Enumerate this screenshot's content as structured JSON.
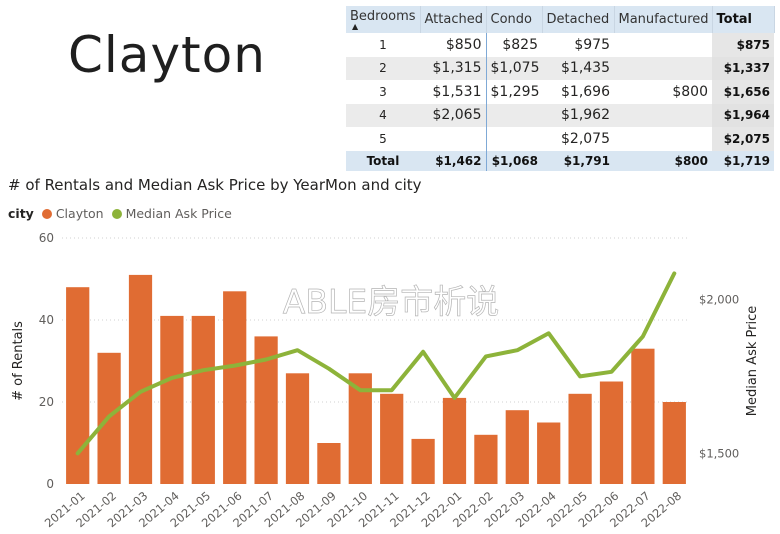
{
  "page": {
    "title": "Clayton"
  },
  "matrix": {
    "headers": [
      "Bedrooms",
      "Attached",
      "Condo",
      "Detached",
      "Manufactured",
      "Total"
    ],
    "rows": [
      [
        "1",
        "$850",
        "$825",
        "$975",
        "",
        "$875"
      ],
      [
        "2",
        "$1,315",
        "$1,075",
        "$1,435",
        "",
        "$1,337"
      ],
      [
        "3",
        "$1,531",
        "$1,295",
        "$1,696",
        "$800",
        "$1,656"
      ],
      [
        "4",
        "$2,065",
        "",
        "$1,962",
        "",
        "$1,964"
      ],
      [
        "5",
        "",
        "",
        "$2,075",
        "",
        "$2,075"
      ]
    ],
    "total_row": [
      "Total",
      "$1,462",
      "$1,068",
      "$1,791",
      "$800",
      "$1,719"
    ]
  },
  "legend": {
    "label": "city",
    "items": [
      {
        "name": "Clayton",
        "color": "#E06C33"
      },
      {
        "name": "Median Ask Price",
        "color": "#8DB33A"
      }
    ]
  },
  "watermark": "ABLE房市析说",
  "chart_data": {
    "type": "bar",
    "title": "# of Rentals and Median Ask Price by YearMon and city",
    "xlabel": "",
    "ylabel": "# of Rentals",
    "y2label": "Median Ask Price",
    "categories": [
      "2021-01",
      "2021-02",
      "2021-03",
      "2021-04",
      "2021-05",
      "2021-06",
      "2021-07",
      "2021-08",
      "2021-09",
      "2021-10",
      "2021-11",
      "2021-12",
      "2022-01",
      "2022-02",
      "2022-03",
      "2022-04",
      "2022-05",
      "2022-06",
      "2022-07",
      "2022-08"
    ],
    "ylim": [
      0,
      60
    ],
    "yticks": [
      0,
      20,
      40,
      60
    ],
    "y2lim": [
      1400,
      2200
    ],
    "y2ticks": [
      1500,
      2000
    ],
    "y2ticklabels": [
      "$1,500",
      "$2,000"
    ],
    "series": [
      {
        "name": "Clayton",
        "type": "bar",
        "axis": "left",
        "color": "#E06C33",
        "values": [
          48,
          32,
          51,
          41,
          41,
          47,
          36,
          27,
          10,
          27,
          22,
          11,
          21,
          12,
          18,
          15,
          22,
          25,
          33,
          20
        ]
      },
      {
        "name": "Median Ask Price",
        "type": "line",
        "axis": "right",
        "color": "#8DB33A",
        "values": [
          1500,
          1620,
          1700,
          1745,
          1770,
          1785,
          1805,
          1835,
          1775,
          1705,
          1705,
          1830,
          1680,
          1815,
          1835,
          1890,
          1750,
          1765,
          1880,
          2085
        ]
      }
    ],
    "grid": true,
    "legend_position": "top-left"
  }
}
